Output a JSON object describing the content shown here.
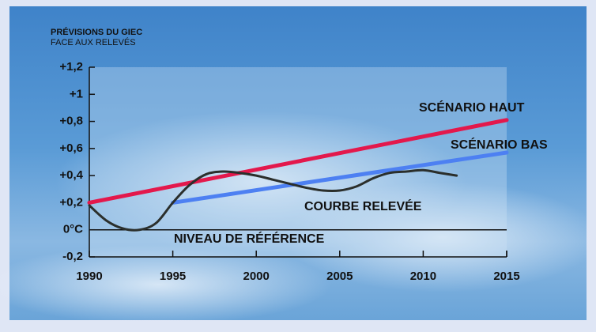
{
  "chart_data": {
    "type": "line",
    "title": "PRÉVISIONS DU GIEC",
    "subtitle": "FACE AUX RELEVÉS",
    "xlim": [
      1990,
      2015
    ],
    "xticks": [
      1990,
      1995,
      2000,
      2005,
      2010,
      2015
    ],
    "ylim": [
      -0.2,
      1.2
    ],
    "yticks": [
      {
        "value": -0.2,
        "label": "-0,2"
      },
      {
        "value": 0,
        "label": "0°C"
      },
      {
        "value": 0.2,
        "label": "+0,2"
      },
      {
        "value": 0.4,
        "label": "+0,4"
      },
      {
        "value": 0.6,
        "label": "+0,6"
      },
      {
        "value": 0.8,
        "label": "+0,8"
      },
      {
        "value": 1,
        "label": "+1"
      },
      {
        "value": 1.2,
        "label": "+1,2"
      }
    ],
    "reference_line": {
      "value": 0,
      "label": "NIVEAU DE RÉFÉRENCE"
    },
    "series": [
      {
        "name": "SCÉNARIO HAUT",
        "color": "#e3184c",
        "x": [
          1990,
          2015
        ],
        "values": [
          0.2,
          0.81
        ]
      },
      {
        "name": "SCÉNARIO BAS",
        "color": "#4d80f2",
        "x": [
          1995,
          2015
        ],
        "values": [
          0.2,
          0.57
        ]
      },
      {
        "name": "COURBE RELEVÉE",
        "color": "#2b2f2c",
        "x": [
          1990,
          1991,
          1992,
          1993,
          1994,
          1995,
          1996,
          1997,
          1998,
          1999,
          2000,
          2001,
          2002,
          2003,
          2004,
          2005,
          2006,
          2007,
          2008,
          2009,
          2010,
          2011,
          2012
        ],
        "values": [
          0.18,
          0.07,
          0.01,
          0.0,
          0.05,
          0.2,
          0.33,
          0.41,
          0.43,
          0.42,
          0.4,
          0.37,
          0.34,
          0.31,
          0.29,
          0.29,
          0.32,
          0.38,
          0.42,
          0.43,
          0.44,
          0.42,
          0.4
        ]
      }
    ]
  }
}
